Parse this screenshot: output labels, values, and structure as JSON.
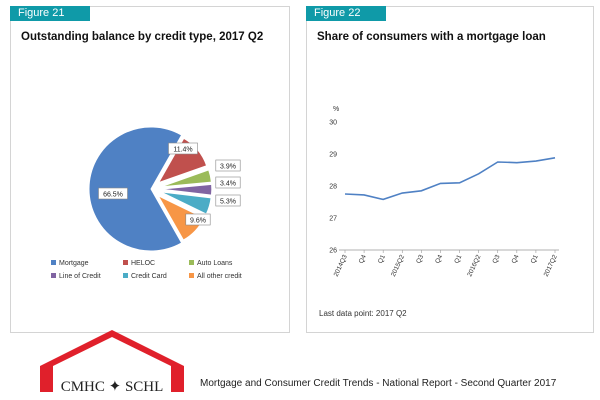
{
  "figures": [
    {
      "label": "Figure 21",
      "title": "Outstanding balance by credit type, 2017 Q2",
      "chart_data": {
        "type": "pie",
        "categories": [
          "Mortgage",
          "HELOC",
          "Auto Loans",
          "Line of Credit",
          "Credit Card",
          "All other credit"
        ],
        "values": [
          66.5,
          11.4,
          3.9,
          3.4,
          5.3,
          9.6
        ],
        "data_labels": [
          "66.5%",
          "11.4%",
          "3.9%",
          "3.4%",
          "5.3%",
          "9.6%"
        ],
        "colors": [
          "#4f81c4",
          "#c0504d",
          "#9bbb59",
          "#8064a2",
          "#4bacc6",
          "#f79646"
        ],
        "exploded": true,
        "legend_position": "bottom"
      }
    },
    {
      "label": "Figure 22",
      "title": "Share of consumers with a mortgage loan",
      "note": "Last data point: 2017 Q2",
      "chart_data": {
        "type": "line",
        "ylabel": "%",
        "ylim": [
          26,
          30
        ],
        "yticks": [
          "30",
          "29",
          "28",
          "27",
          "26"
        ],
        "x": [
          "2014Q3",
          "Q4",
          "Q1",
          "2015Q2",
          "Q3",
          "Q4",
          "Q1",
          "2016Q2",
          "Q3",
          "Q4",
          "Q1",
          "2017Q2"
        ],
        "series": [
          {
            "values": [
              27.75,
              27.72,
              27.58,
              27.78,
              27.85,
              28.08,
              28.1,
              28.38,
              28.75,
              28.73,
              28.78,
              28.88
            ]
          }
        ],
        "color": "#4f81c4",
        "grid": false
      }
    }
  ],
  "footer": {
    "logo_text": "CMHC ✦ SCHL",
    "report_title": "Mortgage and Consumer Credit Trends - National Report - Second Quarter 2017",
    "logo_color": "#e0202b"
  }
}
